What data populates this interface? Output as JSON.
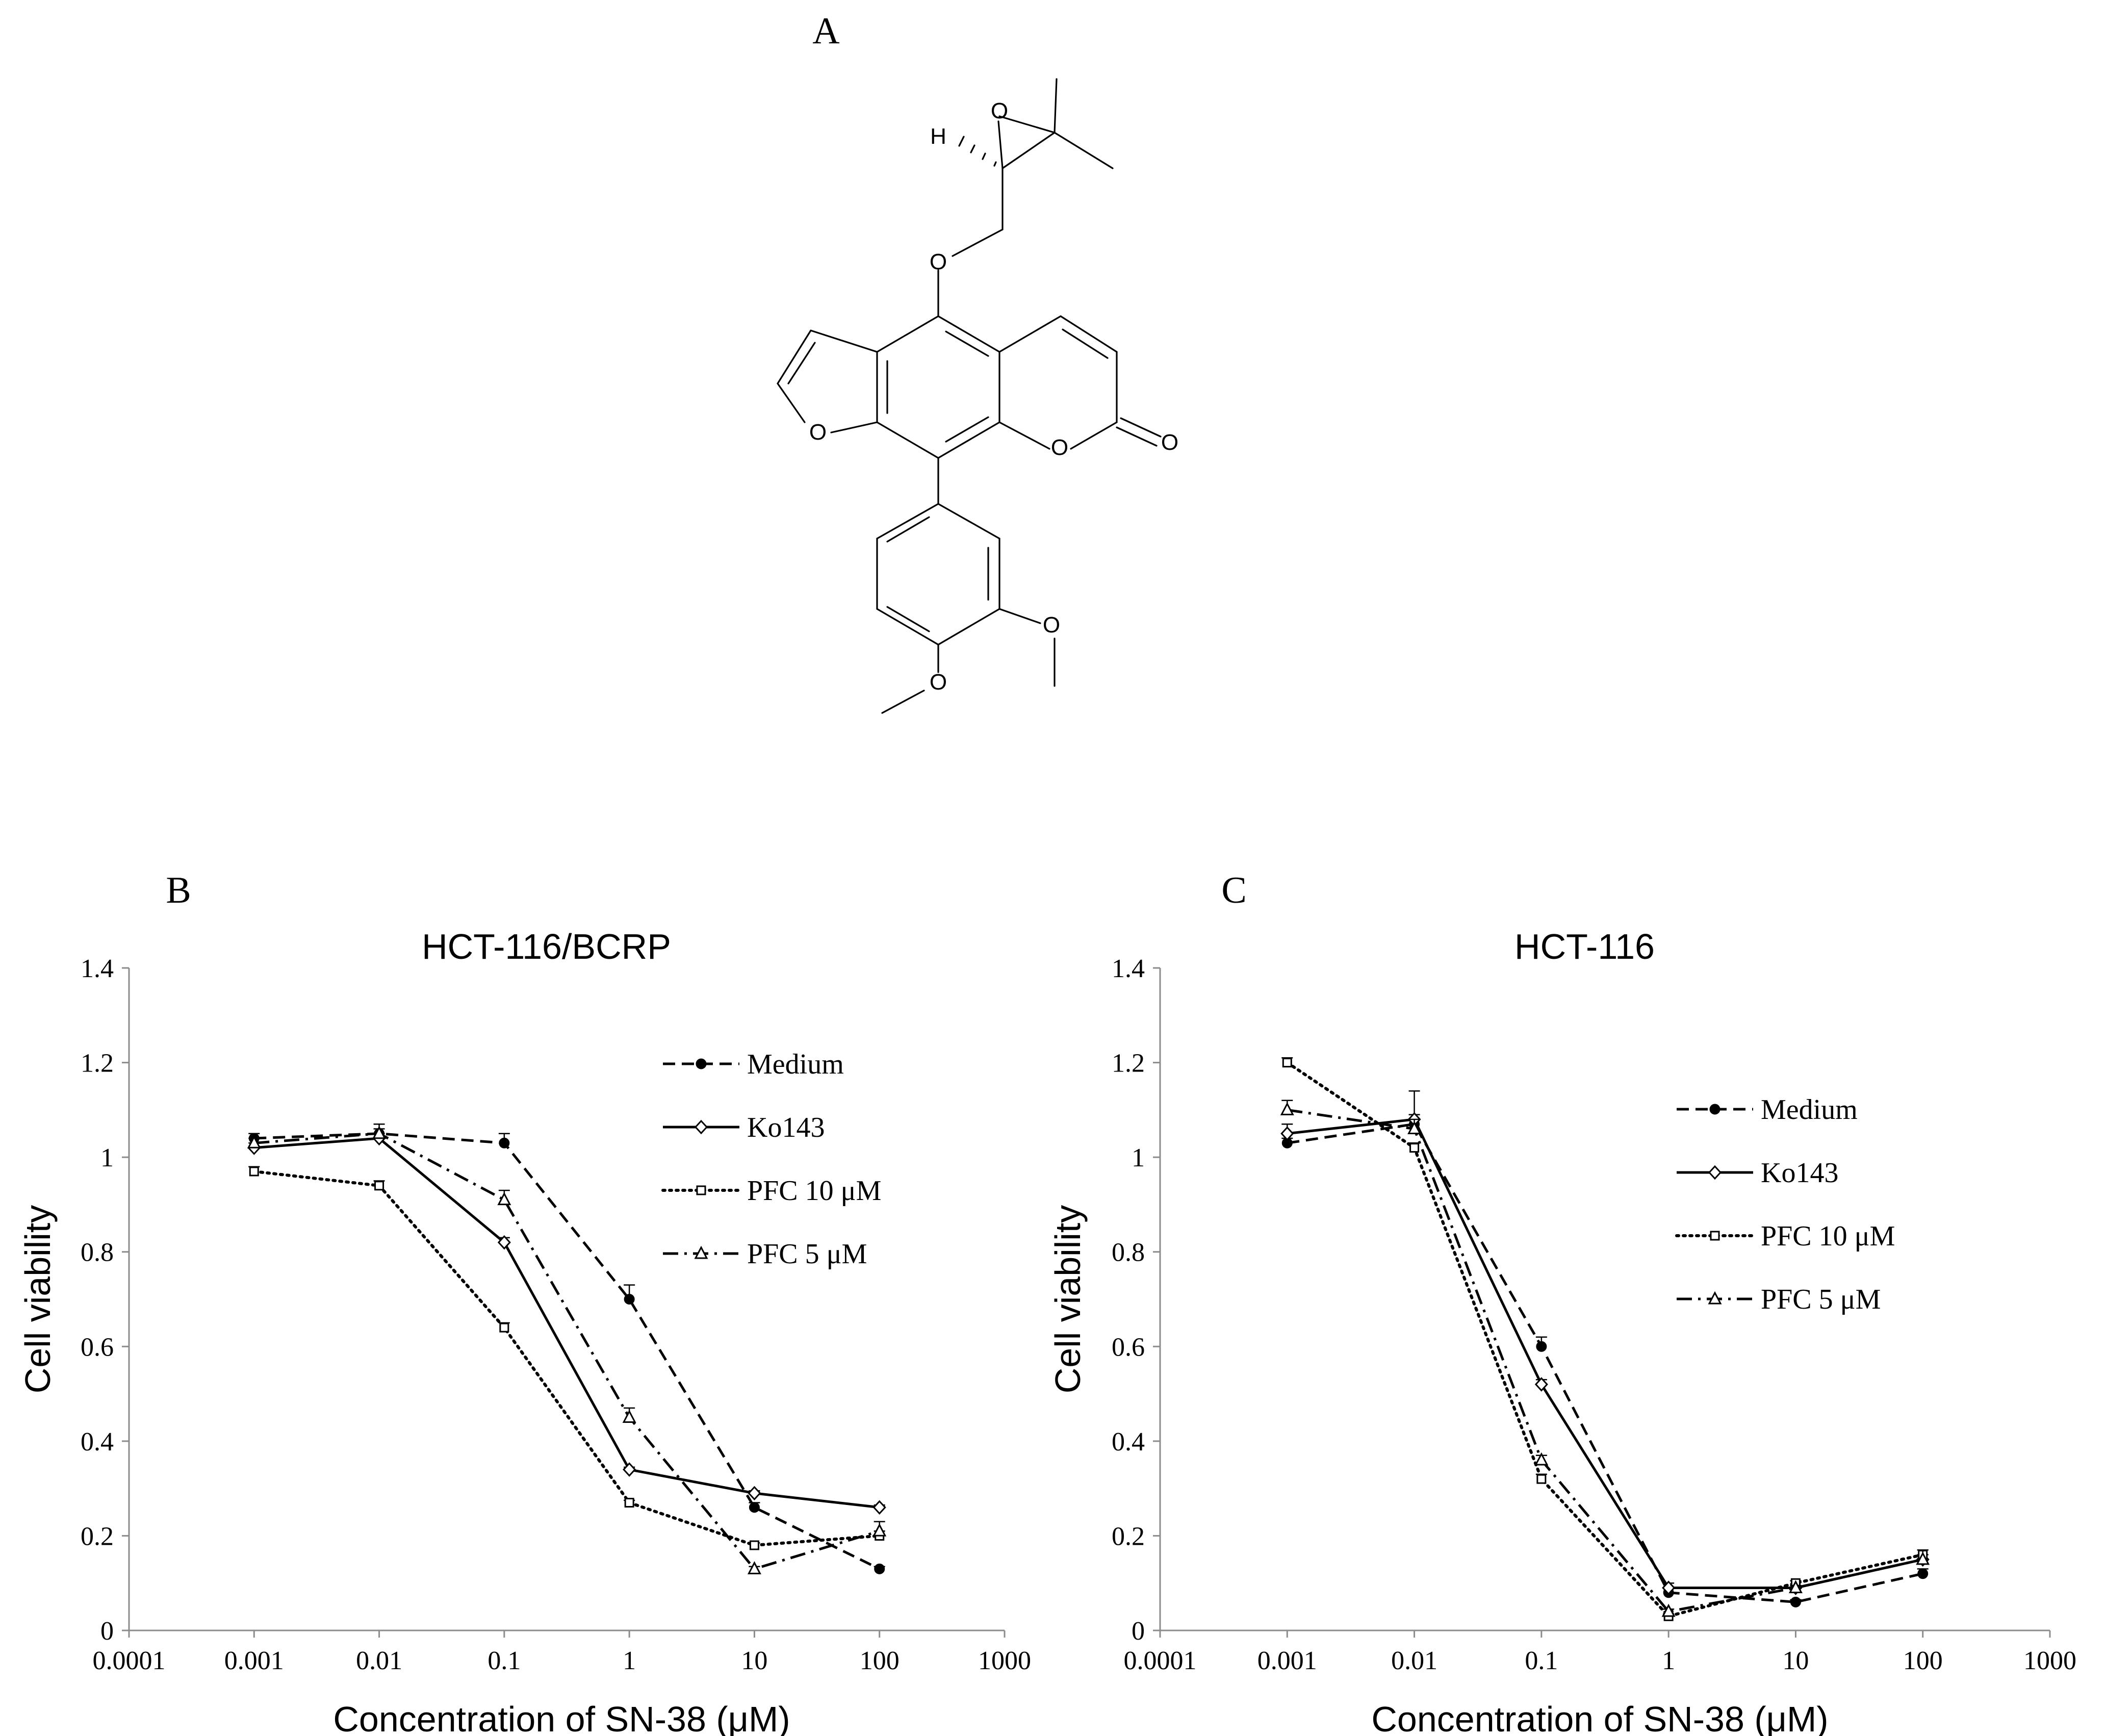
{
  "panel_labels": {
    "a": "A",
    "b": "B",
    "c": "C"
  },
  "structure": {
    "atoms": {
      "o_epoxide": "O",
      "h_stereo": "H",
      "o_ether": "O",
      "o_furan": "O",
      "o_lactone": "O",
      "o_carbonyl": "O",
      "o_methoxy_3": "O",
      "o_methoxy_4": "O"
    }
  },
  "colors": {
    "line": "#000000",
    "axis": "#8c8c8c",
    "background": "#ffffff"
  },
  "chart_data": [
    {
      "id": "B",
      "type": "line",
      "title": "HCT-116/BCRP",
      "xlabel": "Concentration of SN-38 (μM)",
      "ylabel": "Cell viability",
      "x_scale": "log",
      "xlim": [
        0.0001,
        1000
      ],
      "ylim": [
        0,
        1.4
      ],
      "x_ticks": [
        "0.0001",
        "0.001",
        "0.01",
        "0.1",
        "1",
        "10",
        "100",
        "1000"
      ],
      "y_ticks": [
        "0",
        "0.2",
        "0.4",
        "0.6",
        "0.8",
        "1",
        "1.2",
        "1.4"
      ],
      "grid": false,
      "legend_position": "top-right",
      "x": [
        0.001,
        0.01,
        0.1,
        1,
        10,
        100
      ],
      "series": [
        {
          "name": "Medium",
          "style": "dashed",
          "marker": "filled-circle",
          "values": [
            1.04,
            1.05,
            1.03,
            0.7,
            0.26,
            0.13
          ],
          "errors": [
            0.01,
            0.01,
            0.02,
            0.03,
            0.01,
            0.005
          ]
        },
        {
          "name": "Ko143",
          "style": "solid",
          "marker": "open-diamond",
          "values": [
            1.02,
            1.04,
            0.82,
            0.34,
            0.29,
            0.26
          ],
          "errors": [
            0.01,
            0.01,
            0.01,
            0.005,
            0.005,
            0.005
          ]
        },
        {
          "name": "PFC 10 μM",
          "style": "dotted",
          "marker": "open-square",
          "values": [
            0.97,
            0.94,
            0.64,
            0.27,
            0.18,
            0.2
          ],
          "errors": [
            0.01,
            0.01,
            0.01,
            0.005,
            0.005,
            0.01
          ]
        },
        {
          "name": "PFC 5 μM",
          "style": "dash-dot",
          "marker": "open-triangle",
          "values": [
            1.03,
            1.05,
            0.91,
            0.45,
            0.13,
            0.21
          ],
          "errors": [
            0.01,
            0.02,
            0.02,
            0.02,
            0.005,
            0.02
          ]
        }
      ]
    },
    {
      "id": "C",
      "type": "line",
      "title": "HCT-116",
      "xlabel": "Concentration of SN-38 (μM)",
      "ylabel": "Cell viability",
      "x_scale": "log",
      "xlim": [
        0.0001,
        1000
      ],
      "ylim": [
        0,
        1.4
      ],
      "x_ticks": [
        "0.0001",
        "0.001",
        "0.01",
        "0.1",
        "1",
        "10",
        "100",
        "1000"
      ],
      "y_ticks": [
        "0",
        "0.2",
        "0.4",
        "0.6",
        "0.8",
        "1",
        "1.2",
        "1.4"
      ],
      "grid": false,
      "legend_position": "top-right",
      "x": [
        0.001,
        0.01,
        0.1,
        1,
        10,
        100
      ],
      "series": [
        {
          "name": "Medium",
          "style": "dashed",
          "marker": "filled-circle",
          "values": [
            1.03,
            1.07,
            0.6,
            0.08,
            0.06,
            0.12
          ],
          "errors": [
            0.01,
            0.02,
            0.02,
            0.01,
            0.005,
            0.01
          ]
        },
        {
          "name": "Ko143",
          "style": "solid",
          "marker": "open-diamond",
          "values": [
            1.05,
            1.08,
            0.52,
            0.09,
            0.09,
            0.15
          ],
          "errors": [
            0.02,
            0.06,
            0.01,
            0.01,
            0.005,
            0.01
          ]
        },
        {
          "name": "PFC 10 μM",
          "style": "dotted",
          "marker": "open-square",
          "values": [
            1.2,
            1.02,
            0.32,
            0.03,
            0.1,
            0.16
          ],
          "errors": [
            0.01,
            0.01,
            0.01,
            0.005,
            0.005,
            0.01
          ]
        },
        {
          "name": "PFC 5 μM",
          "style": "dash-dot",
          "marker": "open-triangle",
          "values": [
            1.1,
            1.06,
            0.36,
            0.04,
            0.09,
            0.15
          ],
          "errors": [
            0.02,
            0.02,
            0.01,
            0.005,
            0.005,
            0.02
          ]
        }
      ]
    }
  ]
}
